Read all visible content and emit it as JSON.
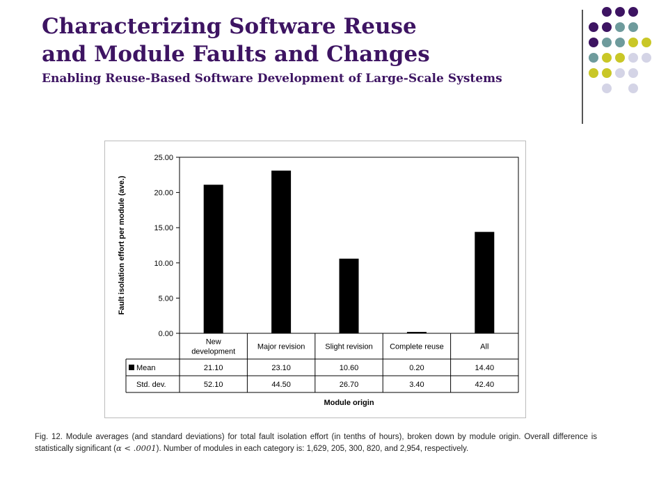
{
  "title": {
    "line1": "Characterizing Software Reuse",
    "line2": "and Module Faults and Changes",
    "subtitle": "Enabling Reuse-Based Software Development of Large-Scale Systems"
  },
  "colors": {
    "title": "#3d1462",
    "dot_purple": "#3d1462",
    "dot_teal": "#6e9b9c",
    "dot_yellow": "#c9c727",
    "dot_lavender": "#d4d4e6",
    "bar": "#000000"
  },
  "chart_data": {
    "type": "bar",
    "categories": [
      "New development",
      "Major revision",
      "Slight revision",
      "Complete reuse",
      "All"
    ],
    "category_lines": [
      [
        "New",
        "development"
      ],
      [
        "Major revision"
      ],
      [
        "Slight revision"
      ],
      [
        "Complete reuse"
      ],
      [
        "All"
      ]
    ],
    "series": [
      {
        "name": "Mean",
        "values": [
          21.1,
          23.1,
          10.6,
          0.2,
          14.4
        ]
      }
    ],
    "table_rows": [
      {
        "label": "Mean",
        "values": [
          "21.10",
          "23.10",
          "10.60",
          "0.20",
          "14.40"
        ]
      },
      {
        "label": "Std. dev.",
        "values": [
          "52.10",
          "44.50",
          "26.70",
          "3.40",
          "42.40"
        ]
      }
    ],
    "yticks": [
      "0.00",
      "5.00",
      "10.00",
      "15.00",
      "20.00",
      "25.00"
    ],
    "ylim": [
      0,
      25
    ],
    "ylabel": "Fault isolation effort per module (ave.)",
    "xlabel": "Module origin",
    "grid": false
  },
  "caption": {
    "part1": "Fig. 12. Module averages (and standard deviations) for total fault isolation effort (in tenths of hours), broken down by module origin. Overall difference is statistically significant (",
    "math": "α < .0001",
    "part2": "). Number of modules in each category is: 1,629, 205, 300, 820, and 2,954, respectively."
  }
}
